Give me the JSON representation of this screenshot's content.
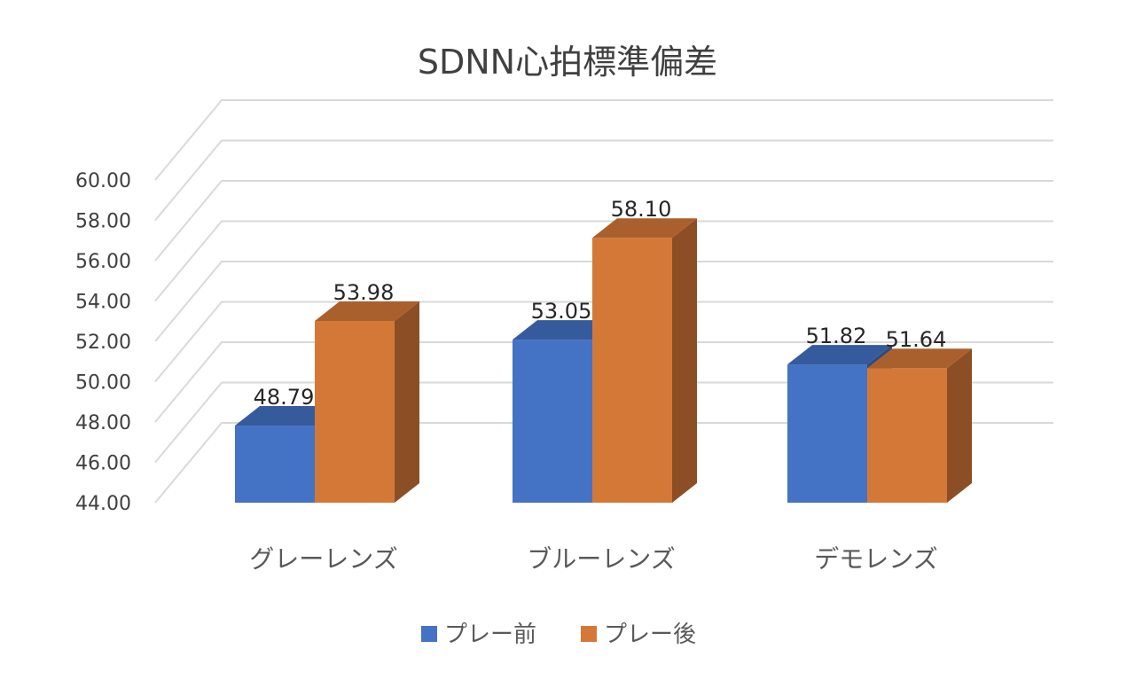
{
  "chart_data": {
    "type": "bar",
    "title": "SDNN心拍標準偏差",
    "categories": [
      "グレーレンズ",
      "ブルーレンズ",
      "デモレンズ"
    ],
    "series": [
      {
        "name": "プレー前",
        "values": [
          48.79,
          53.05,
          51.82
        ],
        "labels": [
          "48.79",
          "53.05",
          "51.82"
        ],
        "color": "#4472c4"
      },
      {
        "name": "プレー後",
        "values": [
          53.98,
          58.1,
          51.64
        ],
        "labels": [
          "53.98",
          "58.10",
          "51.64"
        ],
        "color": "#d47838"
      }
    ],
    "ylim": [
      44,
      60
    ],
    "yticks": [
      "44.00",
      "46.00",
      "48.00",
      "50.00",
      "52.00",
      "54.00",
      "56.00",
      "58.00",
      "60.00"
    ],
    "xlabel": "",
    "ylabel": "",
    "grid": true,
    "legend_position": "bottom",
    "style": "3d-clustered-column"
  }
}
